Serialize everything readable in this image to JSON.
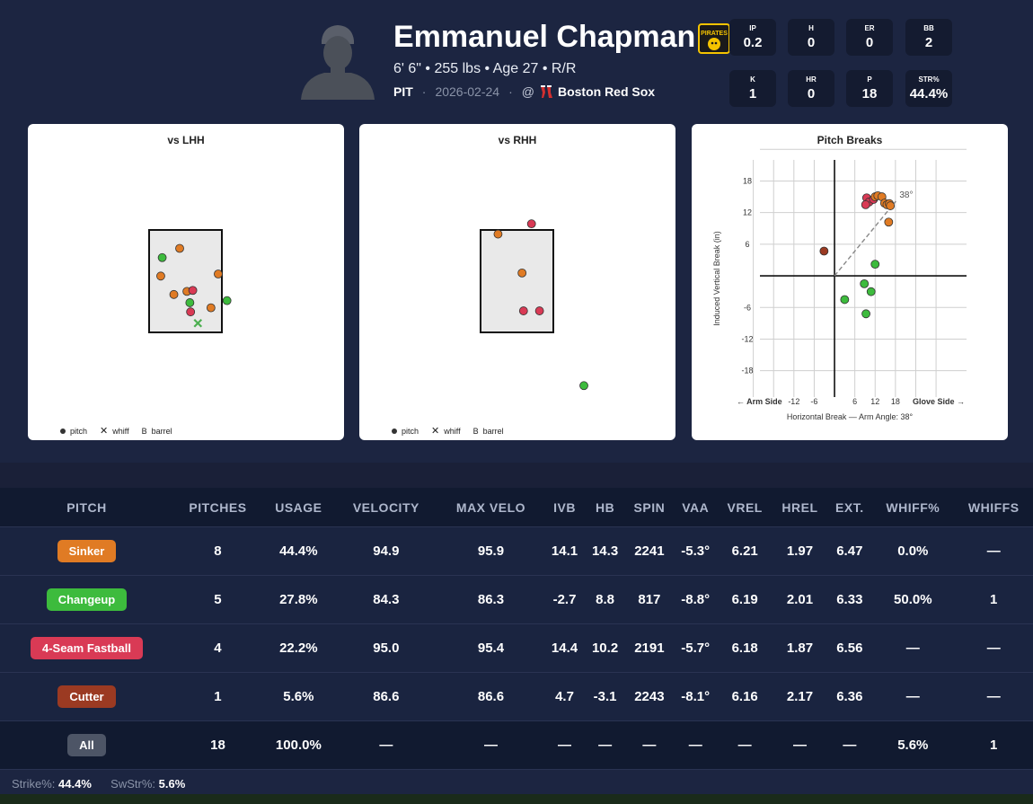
{
  "player": {
    "name": "Emmanuel Chapman",
    "bio": "6' 6\" • 255 lbs • Age 27 • R/R",
    "team": "PIT",
    "date": "2026-02-24",
    "at": "@",
    "opponent": "Boston Red Sox",
    "logo_text": "PIRATES"
  },
  "stats": [
    {
      "label": "IP",
      "value": "0.2"
    },
    {
      "label": "H",
      "value": "0"
    },
    {
      "label": "ER",
      "value": "0"
    },
    {
      "label": "BB",
      "value": "2"
    },
    {
      "label": "K",
      "value": "1"
    },
    {
      "label": "HR",
      "value": "0"
    },
    {
      "label": "P",
      "value": "18"
    },
    {
      "label": "STR%",
      "value": "44.4%"
    }
  ],
  "panels": {
    "lhh_title": "vs LHH",
    "rhh_title": "vs RHH",
    "breaks_title": "Pitch Breaks",
    "legend": {
      "pitch": "pitch",
      "whiff": "whiff",
      "barrel": "barrel",
      "barrel_symbol": "B"
    }
  },
  "colors": {
    "Sinker": "#e07b24",
    "Changeup": "#3dbb3d",
    "4-Seam Fastball": "#d93a55",
    "Cutter": "#9b3a22",
    "All": "#4d5566",
    "whiff": "#4caf50"
  },
  "chart_data": [
    {
      "type": "scatter",
      "title": "vs LHH",
      "points": [
        {
          "pitch": "Changeup",
          "x": 0.18,
          "y": 0.73,
          "result": "pitch"
        },
        {
          "pitch": "Sinker",
          "x": 0.42,
          "y": 0.82,
          "result": "pitch"
        },
        {
          "pitch": "Sinker",
          "x": 0.16,
          "y": 0.55,
          "result": "pitch"
        },
        {
          "pitch": "Sinker",
          "x": 0.34,
          "y": 0.37,
          "result": "pitch"
        },
        {
          "pitch": "Sinker",
          "x": 0.52,
          "y": 0.4,
          "result": "pitch"
        },
        {
          "pitch": "4-Seam Fastball",
          "x": 0.6,
          "y": 0.41,
          "result": "pitch"
        },
        {
          "pitch": "Changeup",
          "x": 0.56,
          "y": 0.29,
          "result": "pitch"
        },
        {
          "pitch": "4-Seam Fastball",
          "x": 0.57,
          "y": 0.2,
          "result": "pitch"
        },
        {
          "pitch": "Sinker",
          "x": 0.95,
          "y": 0.57,
          "result": "pitch"
        },
        {
          "pitch": "Sinker",
          "x": 0.85,
          "y": 0.24,
          "result": "pitch"
        },
        {
          "pitch": "Changeup",
          "x": 1.07,
          "y": 0.31,
          "result": "pitch"
        },
        {
          "pitch": "Changeup",
          "x": 0.67,
          "y": 0.09,
          "result": "whiff"
        }
      ]
    },
    {
      "type": "scatter",
      "title": "vs RHH",
      "points": [
        {
          "pitch": "Sinker",
          "x": 0.24,
          "y": 0.96,
          "result": "pitch"
        },
        {
          "pitch": "4-Seam Fastball",
          "x": 0.7,
          "y": 1.06,
          "result": "pitch"
        },
        {
          "pitch": "Sinker",
          "x": 0.57,
          "y": 0.58,
          "result": "pitch"
        },
        {
          "pitch": "4-Seam Fastball",
          "x": 0.59,
          "y": 0.21,
          "result": "pitch"
        },
        {
          "pitch": "4-Seam Fastball",
          "x": 0.81,
          "y": 0.21,
          "result": "pitch"
        },
        {
          "pitch": "Changeup",
          "x": 1.42,
          "y": -0.52,
          "result": "pitch"
        }
      ]
    },
    {
      "type": "scatter",
      "title": "Pitch Breaks",
      "xlabel": "Horizontal Break — Arm Angle: 38°",
      "ylabel": "Induced Vertical Break (in)",
      "arm_side_label": "← Arm Side",
      "glove_side_label": "Glove Side →",
      "arm_angle_label": "38°",
      "arm_angle_deg": 38,
      "xlim": [
        -30,
        39
      ],
      "ylim": [
        -23,
        22
      ],
      "x_ticks": [
        -12,
        -6,
        6,
        12,
        18
      ],
      "y_ticks": [
        18,
        12,
        6,
        -6,
        -12,
        -18
      ],
      "points": [
        {
          "pitch": "4-Seam Fastball",
          "x": 9.5,
          "y": 14.8
        },
        {
          "pitch": "4-Seam Fastball",
          "x": 10.2,
          "y": 14.0
        },
        {
          "pitch": "4-Seam Fastball",
          "x": 9.2,
          "y": 13.5
        },
        {
          "pitch": "4-Seam Fastball",
          "x": 11.5,
          "y": 14.5
        },
        {
          "pitch": "Sinker",
          "x": 12.0,
          "y": 15.0
        },
        {
          "pitch": "Sinker",
          "x": 12.8,
          "y": 15.2
        },
        {
          "pitch": "Sinker",
          "x": 14.0,
          "y": 15.0
        },
        {
          "pitch": "Sinker",
          "x": 14.8,
          "y": 13.8
        },
        {
          "pitch": "Sinker",
          "x": 15.5,
          "y": 13.5
        },
        {
          "pitch": "Sinker",
          "x": 16.2,
          "y": 13.7
        },
        {
          "pitch": "Sinker",
          "x": 16.5,
          "y": 13.3
        },
        {
          "pitch": "Sinker",
          "x": 16.0,
          "y": 10.2
        },
        {
          "pitch": "Cutter",
          "x": -3.1,
          "y": 4.7
        },
        {
          "pitch": "Changeup",
          "x": 12.0,
          "y": 2.2
        },
        {
          "pitch": "Changeup",
          "x": 8.8,
          "y": -1.5
        },
        {
          "pitch": "Changeup",
          "x": 10.8,
          "y": -3.0
        },
        {
          "pitch": "Changeup",
          "x": 3.0,
          "y": -4.5
        },
        {
          "pitch": "Changeup",
          "x": 9.3,
          "y": -7.2
        }
      ]
    }
  ],
  "table": {
    "headers": [
      "PITCH",
      "PITCHES",
      "USAGE",
      "VELOCITY",
      "MAX VELO",
      "IVB",
      "HB",
      "SPIN",
      "VAA",
      "VREL",
      "HREL",
      "EXT.",
      "WHIFF%",
      "WHIFFS"
    ],
    "rows": [
      {
        "pitch": "Sinker",
        "cells": [
          "8",
          "44.4%",
          "94.9",
          "95.9",
          "14.1",
          "14.3",
          "2241",
          "-5.3°",
          "6.21",
          "1.97",
          "6.47",
          "0.0%",
          "—"
        ]
      },
      {
        "pitch": "Changeup",
        "cells": [
          "5",
          "27.8%",
          "84.3",
          "86.3",
          "-2.7",
          "8.8",
          "817",
          "-8.8°",
          "6.19",
          "2.01",
          "6.33",
          "50.0%",
          "1"
        ]
      },
      {
        "pitch": "4-Seam Fastball",
        "cells": [
          "4",
          "22.2%",
          "95.0",
          "95.4",
          "14.4",
          "10.2",
          "2191",
          "-5.7°",
          "6.18",
          "1.87",
          "6.56",
          "—",
          "—"
        ]
      },
      {
        "pitch": "Cutter",
        "cells": [
          "1",
          "5.6%",
          "86.6",
          "86.6",
          "4.7",
          "-3.1",
          "2243",
          "-8.1°",
          "6.16",
          "2.17",
          "6.36",
          "—",
          "—"
        ]
      },
      {
        "pitch": "All",
        "cells": [
          "18",
          "100.0%",
          "—",
          "—",
          "—",
          "—",
          "—",
          "—",
          "—",
          "—",
          "—",
          "5.6%",
          "1"
        ]
      }
    ]
  },
  "footer": {
    "strike_label": "Strike%:",
    "strike_value": "44.4%",
    "swstr_label": "SwStr%:",
    "swstr_value": "5.6%"
  }
}
